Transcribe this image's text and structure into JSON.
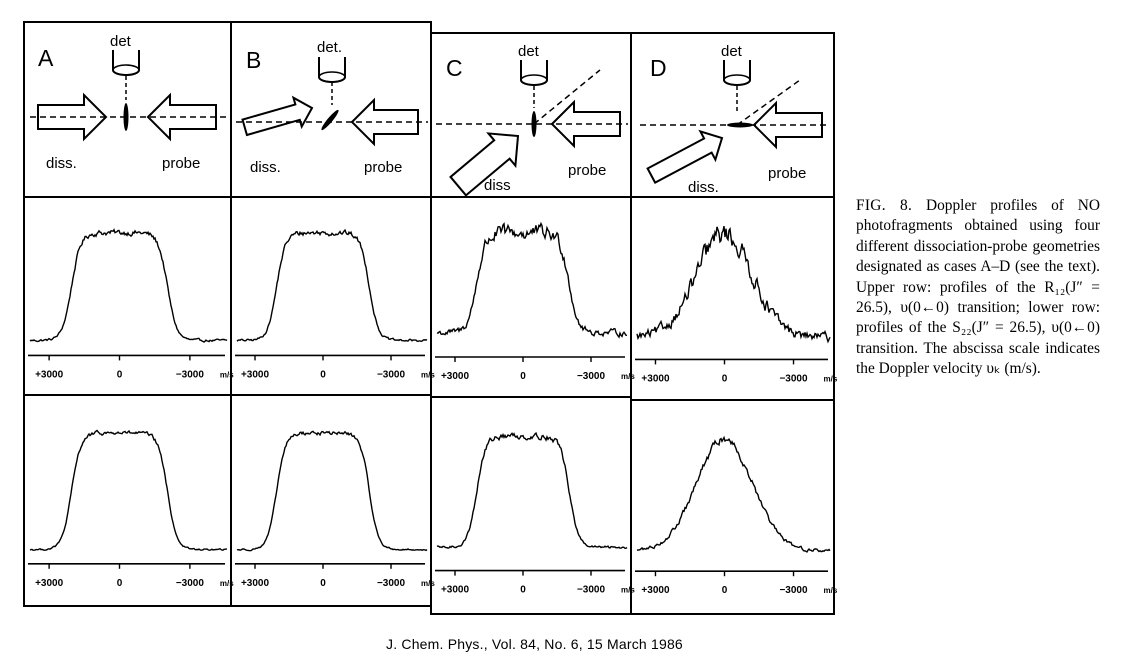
{
  "panels": [
    {
      "id": "A",
      "det": "det",
      "diss": "diss.",
      "probe": "probe"
    },
    {
      "id": "B",
      "det": "det.",
      "diss": "diss.",
      "probe": "probe"
    },
    {
      "id": "C",
      "det": "det",
      "diss": "diss",
      "probe": "probe"
    },
    {
      "id": "D",
      "det": "det",
      "diss": "diss.",
      "probe": "probe"
    }
  ],
  "axis": {
    "left_tick": "+3000",
    "center_tick": "0",
    "right_tick": "−3000",
    "unit": "m/s"
  },
  "caption": {
    "label": "FIG. 8.",
    "text": "Doppler profiles of NO photofragments obtained using four different dissociation-probe geometries designated as cases A–D (see the text). Upper row: profiles of the R₁₂(J″ = 26.5), υ(0←0) transition; lower row: profiles of the S₂₂(J″ = 26.5), υ(0←0) transition. The abscissa scale indicates the Doppler velocity υₖ (m/s)."
  },
  "footer": "J. Chem. Phys., Vol. 84, No. 6, 15 March 1986",
  "chart_data": [
    {
      "type": "line",
      "panel": "A",
      "row": "upper",
      "shape": "flat-top",
      "noise": 0.03,
      "baseline": 0.06,
      "x": [
        3000,
        0,
        -3000
      ]
    },
    {
      "type": "line",
      "panel": "B",
      "row": "upper",
      "shape": "flat-top",
      "noise": 0.03,
      "baseline": 0.06,
      "x": [
        3000,
        0,
        -3000
      ]
    },
    {
      "type": "line",
      "panel": "C",
      "row": "upper",
      "shape": "flat-top",
      "noise": 0.08,
      "baseline": 0.14,
      "x": [
        3000,
        0,
        -3000
      ]
    },
    {
      "type": "line",
      "panel": "D",
      "row": "upper",
      "shape": "peaked",
      "noise": 0.12,
      "baseline": 0.12,
      "x": [
        3000,
        0,
        -3000
      ]
    },
    {
      "type": "line",
      "panel": "A",
      "row": "lower",
      "shape": "flat-top",
      "noise": 0.02,
      "baseline": 0.05,
      "x": [
        3000,
        0,
        -3000
      ]
    },
    {
      "type": "line",
      "panel": "B",
      "row": "lower",
      "shape": "flat-top",
      "noise": 0.02,
      "baseline": 0.05,
      "x": [
        3000,
        0,
        -3000
      ]
    },
    {
      "type": "line",
      "panel": "C",
      "row": "lower",
      "shape": "flat-top",
      "noise": 0.03,
      "baseline": 0.12,
      "x": [
        3000,
        0,
        -3000
      ]
    },
    {
      "type": "line",
      "panel": "D",
      "row": "lower",
      "shape": "peaked",
      "noise": 0.04,
      "baseline": 0.1,
      "x": [
        3000,
        0,
        -3000
      ]
    }
  ]
}
